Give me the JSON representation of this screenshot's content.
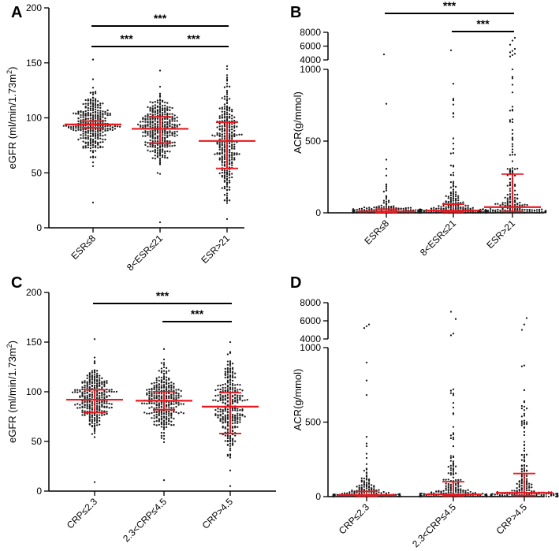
{
  "figure": {
    "colors": {
      "point": "#1a1a1a",
      "summary": "#e8191f",
      "axis": "#000000"
    }
  },
  "chart_data": [
    {
      "panel": "A",
      "type": "scatter",
      "subtype": "dot-plot",
      "ylabel_main": "eGFR (ml/min/1.73m",
      "ylabel_sup": "2",
      "ylabel_end": ")",
      "ylim": [
        0,
        200
      ],
      "yticks": [
        0,
        50,
        100,
        150,
        200
      ],
      "categories": [
        "ESR≤8",
        "8<ESR≤21",
        "ESR>21"
      ],
      "groups": [
        {
          "name": "ESR≤8",
          "median": 94,
          "q1": 91,
          "q3": 97,
          "min": 23,
          "max": 153,
          "n": 320,
          "spread": 13
        },
        {
          "name": "8<ESR≤21",
          "median": 90,
          "q1": 77,
          "q3": 101,
          "min": 5,
          "max": 143,
          "n": 340,
          "spread": 15
        },
        {
          "name": "ESR>21",
          "median": 79,
          "q1": 54,
          "q3": 96,
          "min": 8,
          "max": 147,
          "n": 300,
          "spread": 25
        }
      ],
      "significance": [
        {
          "from": 0,
          "to": 2,
          "label": "***",
          "level": 1
        },
        {
          "from": 0,
          "to": 1,
          "label": "***",
          "level": 0
        },
        {
          "from": 1,
          "to": 2,
          "label": "***",
          "level": 0
        }
      ]
    },
    {
      "panel": "B",
      "type": "scatter",
      "subtype": "dot-plot-broken-axis",
      "ylabel": "ACR(g/mmol)",
      "lower_ylim": [
        0,
        1000
      ],
      "lower_yticks": [
        0,
        500,
        1000
      ],
      "upper_ylim": [
        4000,
        8000
      ],
      "upper_yticks": [
        4000,
        6000,
        8000
      ],
      "categories": [
        "ESR≤8",
        "8<ESR≤21",
        "ESR>21"
      ],
      "groups": [
        {
          "name": "ESR≤8",
          "median": 10,
          "q1": 5,
          "q3": 25,
          "max_lower": 760,
          "outliers_upper": [
            4800
          ],
          "n": 220
        },
        {
          "name": "8<ESR≤21",
          "median": 15,
          "q1": 6,
          "q3": 60,
          "max_lower": 900,
          "outliers_upper": [
            5400
          ],
          "n": 250
        },
        {
          "name": "ESR>21",
          "median": 40,
          "q1": 10,
          "q3": 270,
          "max_lower": 1000,
          "outliers_upper": [
            4500,
            4700,
            4900,
            5100,
            5300,
            5600,
            6200,
            6800,
            7200
          ],
          "n": 230
        }
      ],
      "significance": [
        {
          "from": 0,
          "to": 2,
          "label": "***",
          "level": 1
        },
        {
          "from": 1,
          "to": 2,
          "label": "***",
          "level": 0
        }
      ]
    },
    {
      "panel": "C",
      "type": "scatter",
      "subtype": "dot-plot",
      "ylabel_main": "eGFR (ml/min/1.73m",
      "ylabel_sup": "2",
      "ylabel_end": ")",
      "ylim": [
        0,
        200
      ],
      "yticks": [
        0,
        50,
        100,
        150,
        200
      ],
      "categories": [
        "CRP≤2.3",
        "2.3<CRP≤4.5",
        "CRP>4.5"
      ],
      "groups": [
        {
          "name": "CRP≤2.3",
          "median": 92,
          "q1": 79,
          "q3": 102,
          "min": 9,
          "max": 153,
          "n": 300,
          "spread": 15
        },
        {
          "name": "2.3<CRP≤4.5",
          "median": 91,
          "q1": 82,
          "q3": 100,
          "min": 11,
          "max": 143,
          "n": 310,
          "spread": 15
        },
        {
          "name": "CRP>4.5",
          "median": 85,
          "q1": 58,
          "q3": 99,
          "min": 5,
          "max": 150,
          "n": 300,
          "spread": 23
        }
      ],
      "significance": [
        {
          "from": 0,
          "to": 2,
          "label": "***",
          "level": 1
        },
        {
          "from": 1,
          "to": 2,
          "label": "***",
          "level": 0
        }
      ]
    },
    {
      "panel": "D",
      "type": "scatter",
      "subtype": "dot-plot-broken-axis",
      "ylabel": "ACR(g/mmol)",
      "lower_ylim": [
        0,
        1000
      ],
      "lower_yticks": [
        0,
        500,
        1000
      ],
      "upper_ylim": [
        4000,
        8000
      ],
      "upper_yticks": [
        4000,
        6000,
        8000
      ],
      "categories": [
        "CRP≤2.3",
        "2.3<CRP≤4.5",
        "CRP>4.5"
      ],
      "groups": [
        {
          "name": "CRP≤2.3",
          "median": 10,
          "q1": 5,
          "q3": 35,
          "max_lower": 900,
          "outliers_upper": [
            5200,
            5400,
            5600
          ],
          "n": 230
        },
        {
          "name": "2.3<CRP≤4.5",
          "median": 15,
          "q1": 6,
          "q3": 100,
          "max_lower": 720,
          "outliers_upper": [
            4400,
            4600,
            6200,
            7000
          ],
          "n": 250
        },
        {
          "name": "CRP>4.5",
          "median": 25,
          "q1": 8,
          "q3": 155,
          "max_lower": 880,
          "outliers_upper": [
            5000,
            5600,
            6300
          ],
          "n": 230
        }
      ],
      "significance": []
    }
  ]
}
